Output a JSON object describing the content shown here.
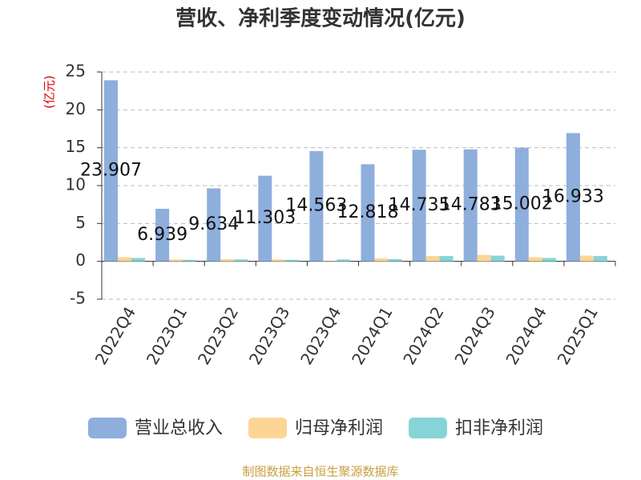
{
  "chart_data": {
    "type": "bar",
    "title": "营收、净利季度变动情况(亿元)",
    "ylabel": "(亿元)",
    "source": "制图数据来自恒生聚源数据库",
    "categories": [
      "2022Q4",
      "2023Q1",
      "2023Q2",
      "2023Q3",
      "2023Q4",
      "2024Q1",
      "2024Q2",
      "2024Q3",
      "2024Q4",
      "2025Q1"
    ],
    "series": [
      {
        "name": "营业总收入",
        "color": "#8eaedc",
        "values": [
          23.907,
          6.939,
          9.634,
          11.303,
          14.563,
          12.818,
          14.735,
          14.783,
          15.002,
          16.933
        ],
        "show_labels": true
      },
      {
        "name": "归母净利润",
        "color": "#fdd595",
        "values": [
          0.55,
          0.25,
          0.3,
          0.25,
          0.05,
          0.4,
          0.7,
          0.85,
          0.55,
          0.75
        ]
      },
      {
        "name": "扣非净利润",
        "color": "#86d4d8",
        "values": [
          0.45,
          0.2,
          0.25,
          0.2,
          0.25,
          0.3,
          0.7,
          0.75,
          0.45,
          0.7
        ]
      }
    ],
    "ylim": [
      -5,
      25
    ],
    "yticks": [
      -5,
      0,
      5,
      10,
      15,
      20,
      25
    ],
    "grid": true,
    "legend": "bottom"
  }
}
